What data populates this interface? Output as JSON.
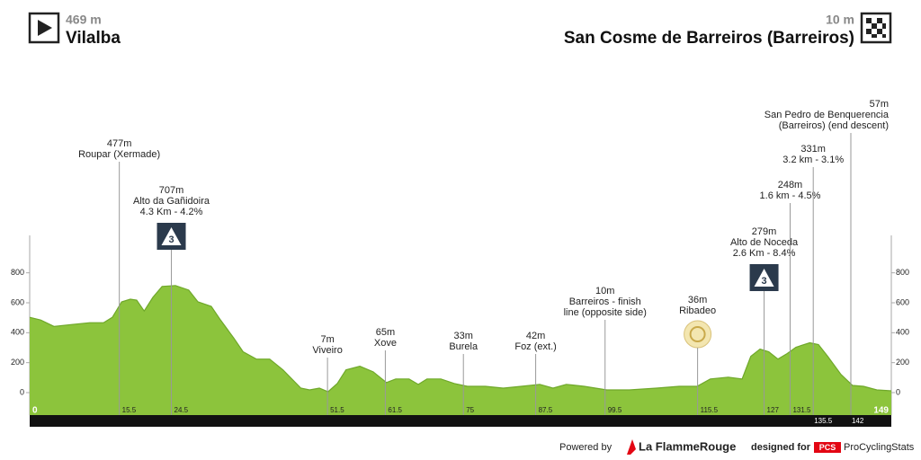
{
  "chart_data": {
    "type": "area",
    "start": {
      "elevation": "469 m",
      "name": "Vilalba"
    },
    "finish": {
      "elevation": "10 m",
      "name": "San Cosme de Barreiros (Barreiros)"
    },
    "x": [
      0,
      1.9,
      4.2,
      7.3,
      10.4,
      12.8,
      14.3,
      15.9,
      17.4,
      18.5,
      19.8,
      21.3,
      22.9,
      25.2,
      27.5,
      29.1,
      31.4,
      33,
      35.3,
      36.9,
      39.2,
      41.5,
      43.8,
      46.9,
      48.4,
      50.1,
      51.6,
      53.2,
      54.7,
      57.1,
      59.4,
      61.7,
      63.3,
      65.6,
      67.2,
      68.7,
      71.1,
      73.4,
      75.7,
      78.8,
      81.9,
      85,
      88.2,
      90.5,
      92.8,
      95.9,
      99.8,
      103.7,
      108.4,
      112.3,
      115.4,
      117.7,
      120.8,
      123.2,
      124.7,
      126.3,
      127.8,
      129.4,
      131,
      132.5,
      134.9,
      136.4,
      138,
      140.3,
      142.3,
      144.2,
      146.5,
      149
    ],
    "values": [
      503,
      485,
      442,
      455,
      467,
      467,
      503,
      606,
      624,
      618,
      545,
      636,
      709,
      715,
      685,
      606,
      576,
      485,
      364,
      273,
      224,
      224,
      152,
      30,
      18,
      30,
      6,
      61,
      152,
      176,
      139,
      67,
      91,
      91,
      55,
      91,
      91,
      61,
      42,
      42,
      30,
      42,
      55,
      30,
      55,
      42,
      18,
      18,
      30,
      42,
      42,
      91,
      103,
      91,
      242,
      291,
      273,
      224,
      261,
      303,
      333,
      321,
      242,
      121,
      48,
      42,
      18,
      12
    ],
    "color": "#8cc43c",
    "xlim": [
      0,
      149
    ],
    "ylim": [
      -150,
      1050
    ],
    "yticks": [
      0,
      200,
      400,
      600,
      800
    ],
    "xticks": [
      0,
      15.5,
      24.5,
      51.5,
      61.5,
      75,
      87.5,
      99.5,
      115.5,
      127,
      131.5,
      135.5,
      142,
      149
    ],
    "annotations": [
      {
        "x": 15.5,
        "lines": [
          "477m",
          "Roupar (Xermade)"
        ]
      },
      {
        "x": 24.5,
        "lines": [
          "707m",
          "Alto da Gañidoira",
          "4.3 Km - 4.2%"
        ],
        "category": "3"
      },
      {
        "x": 51.5,
        "lines": [
          "7m",
          "Viveiro"
        ]
      },
      {
        "x": 61.5,
        "lines": [
          "65m",
          "Xove"
        ]
      },
      {
        "x": 75,
        "lines": [
          "33m",
          "Burela"
        ]
      },
      {
        "x": 87.5,
        "lines": [
          "42m",
          "Foz (ext.)"
        ]
      },
      {
        "x": 99.5,
        "lines": [
          "10m",
          "Barreiros - finish",
          "line (opposite side)"
        ]
      },
      {
        "x": 115.5,
        "lines": [
          "36m",
          "Ribadeo"
        ]
      },
      {
        "x": 127,
        "lines": [
          "279m",
          "Alto de Noceda",
          "2.6 Km - 8.4%"
        ],
        "category": "3"
      },
      {
        "x": 131.5,
        "lines": [
          "248m",
          "1.6 km - 4.5%"
        ]
      },
      {
        "x": 135.5,
        "lines": [
          "331m",
          "3.2 km - 3.1%"
        ]
      },
      {
        "x": 142,
        "lines": [
          "57m",
          "San Pedro de Benquerencia",
          "(Barreiros) (end descent)"
        ]
      }
    ],
    "footer": {
      "powered": "Powered by",
      "brand": "La FlammeRouge",
      "designed": "designed for",
      "pcs": "PCS",
      "site": "ProCyclingStats"
    }
  }
}
